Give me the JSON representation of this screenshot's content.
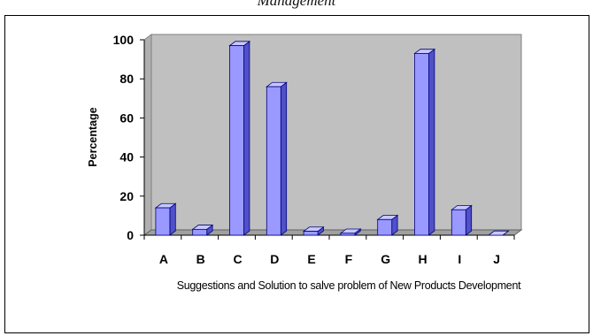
{
  "page": {
    "caption": "Management"
  },
  "chart_data": {
    "type": "bar",
    "title": "",
    "categories": [
      "A",
      "B",
      "C",
      "D",
      "E",
      "F",
      "G",
      "H",
      "I",
      "J"
    ],
    "values": [
      14,
      3,
      97,
      76,
      2,
      1,
      8,
      93,
      13,
      0
    ],
    "xlabel": "Suggestions and Solution to salve problem of New Products Development",
    "ylabel": "Percentage",
    "ylim": [
      0,
      100
    ],
    "yticks": [
      0,
      20,
      40,
      60,
      80,
      100
    ],
    "grid": false,
    "legend": "none",
    "style": "3d-column",
    "colors": {
      "bar_front": "#9999ff",
      "bar_top": "#c8c8ff",
      "bar_side": "#5050c8",
      "bar_outline": "#000080",
      "plot_wall": "#c0c0c0",
      "plot_floor": "#a0a0a0"
    }
  }
}
